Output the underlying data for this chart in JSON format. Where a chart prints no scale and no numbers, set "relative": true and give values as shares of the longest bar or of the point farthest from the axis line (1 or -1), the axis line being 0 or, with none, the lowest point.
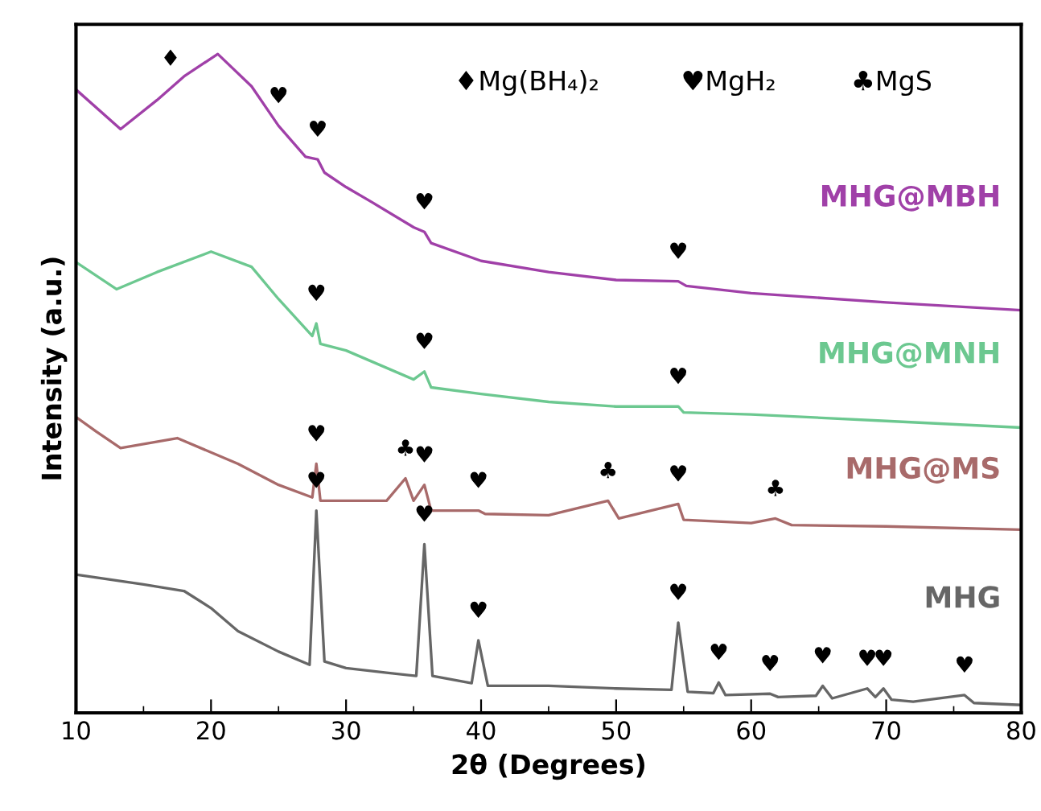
{
  "chart_data": {
    "type": "line",
    "relative": true,
    "xlabel": "2θ (Degrees)",
    "ylabel": "Intensity (a.u.)",
    "xlim": [
      10,
      80
    ],
    "xticks": [
      10,
      20,
      30,
      40,
      50,
      60,
      70,
      80
    ],
    "tick_labels": "x",
    "grid": false,
    "legend": false,
    "series": [
      {
        "name": "MHG@MBH",
        "color": "#a040a8",
        "x": [
          10,
          13.3,
          16,
          18,
          20.5,
          23,
          25,
          27,
          27.9,
          28.4,
          30,
          32,
          35,
          35.8,
          36.3,
          40,
          45,
          50,
          54.6,
          55.2,
          60,
          70,
          80
        ],
        "values": [
          0.946,
          0.886,
          0.93,
          0.966,
          1.0,
          0.951,
          0.891,
          0.844,
          0.84,
          0.82,
          0.798,
          0.774,
          0.737,
          0.73,
          0.713,
          0.686,
          0.669,
          0.657,
          0.655,
          0.648,
          0.637,
          0.623,
          0.611
        ]
      },
      {
        "name": "MHG@MNH",
        "color": "#6cc890",
        "x": [
          10,
          13,
          16,
          20,
          23,
          25,
          27.5,
          27.8,
          28.1,
          30,
          35,
          35.8,
          36.3,
          40,
          45,
          50,
          54.6,
          55,
          60,
          70,
          80
        ],
        "values": [
          0.684,
          0.643,
          0.669,
          0.7,
          0.677,
          0.628,
          0.572,
          0.591,
          0.56,
          0.55,
          0.506,
          0.518,
          0.494,
          0.484,
          0.472,
          0.465,
          0.465,
          0.456,
          0.453,
          0.443,
          0.433
        ]
      },
      {
        "name": "MHG@MS",
        "color": "#a86a6a",
        "x": [
          10,
          11.5,
          13.3,
          17.5,
          22,
          25,
          27.5,
          27.8,
          28.1,
          30,
          33,
          34.4,
          35,
          35.8,
          36.3,
          39.8,
          40.3,
          45,
          49.4,
          50.2,
          54.6,
          55,
          60,
          61.8,
          63,
          70,
          80
        ],
        "values": [
          0.449,
          0.427,
          0.402,
          0.417,
          0.378,
          0.346,
          0.327,
          0.378,
          0.322,
          0.322,
          0.322,
          0.356,
          0.322,
          0.346,
          0.307,
          0.307,
          0.302,
          0.3,
          0.322,
          0.295,
          0.317,
          0.293,
          0.288,
          0.295,
          0.285,
          0.283,
          0.278
        ]
      },
      {
        "name": "MHG",
        "color": "#666666",
        "x": [
          10,
          15,
          18,
          20,
          22,
          25,
          27.3,
          27.8,
          28.4,
          30,
          33,
          35.2,
          35.8,
          36.4,
          39.3,
          39.8,
          40.5,
          45,
          50,
          54.1,
          54.6,
          55.3,
          57.2,
          57.6,
          58.1,
          61.4,
          62,
          64.8,
          65.3,
          66,
          68.6,
          69.2,
          69.8,
          70.4,
          72,
          75.8,
          76.5,
          80
        ],
        "values": [
          0.21,
          0.195,
          0.185,
          0.159,
          0.124,
          0.093,
          0.073,
          0.307,
          0.078,
          0.068,
          0.061,
          0.056,
          0.256,
          0.056,
          0.045,
          0.11,
          0.041,
          0.041,
          0.037,
          0.035,
          0.137,
          0.032,
          0.03,
          0.046,
          0.027,
          0.029,
          0.024,
          0.026,
          0.041,
          0.022,
          0.037,
          0.024,
          0.037,
          0.02,
          0.017,
          0.027,
          0.015,
          0.012
        ]
      }
    ],
    "annotations": [
      "♦Mg(BH₄)₂",
      "♥MgH₂",
      "♣MgS",
      {
        "text": "♦",
        "x": 17,
        "y": 0.948
      },
      {
        "text": "♥",
        "x": 25,
        "y": 0.891
      },
      {
        "text": "♥",
        "x": 27.9,
        "y": 0.84
      },
      {
        "text": "♥",
        "x": 35.8,
        "y": 0.73
      },
      {
        "text": "♥",
        "x": 54.6,
        "y": 0.655
      },
      {
        "text": "♥",
        "x": 27.8,
        "y": 0.591
      },
      {
        "text": "♥",
        "x": 35.8,
        "y": 0.518
      },
      {
        "text": "♥",
        "x": 54.6,
        "y": 0.465
      },
      {
        "text": "♥",
        "x": 27.8,
        "y": 0.378
      },
      {
        "text": "♣",
        "x": 34.4,
        "y": 0.356
      },
      {
        "text": "♥",
        "x": 35.8,
        "y": 0.346
      },
      {
        "text": "♥",
        "x": 39.8,
        "y": 0.307
      },
      {
        "text": "♣",
        "x": 49.4,
        "y": 0.322
      },
      {
        "text": "♥",
        "x": 54.6,
        "y": 0.317
      },
      {
        "text": "♣",
        "x": 61.8,
        "y": 0.295
      },
      {
        "text": "♥",
        "x": 27.8,
        "y": 0.307
      },
      {
        "text": "♥",
        "x": 35.8,
        "y": 0.256
      },
      {
        "text": "♥",
        "x": 39.8,
        "y": 0.11
      },
      {
        "text": "♥",
        "x": 54.6,
        "y": 0.137
      },
      {
        "text": "♥",
        "x": 57.6,
        "y": 0.046
      },
      {
        "text": "♥",
        "x": 61.4,
        "y": 0.029
      },
      {
        "text": "♥",
        "x": 65.3,
        "y": 0.041
      },
      {
        "text": "♥",
        "x": 68.6,
        "y": 0.037
      },
      {
        "text": "♥",
        "x": 69.8,
        "y": 0.037
      },
      {
        "text": "♥",
        "x": 75.8,
        "y": 0.027
      }
    ]
  }
}
